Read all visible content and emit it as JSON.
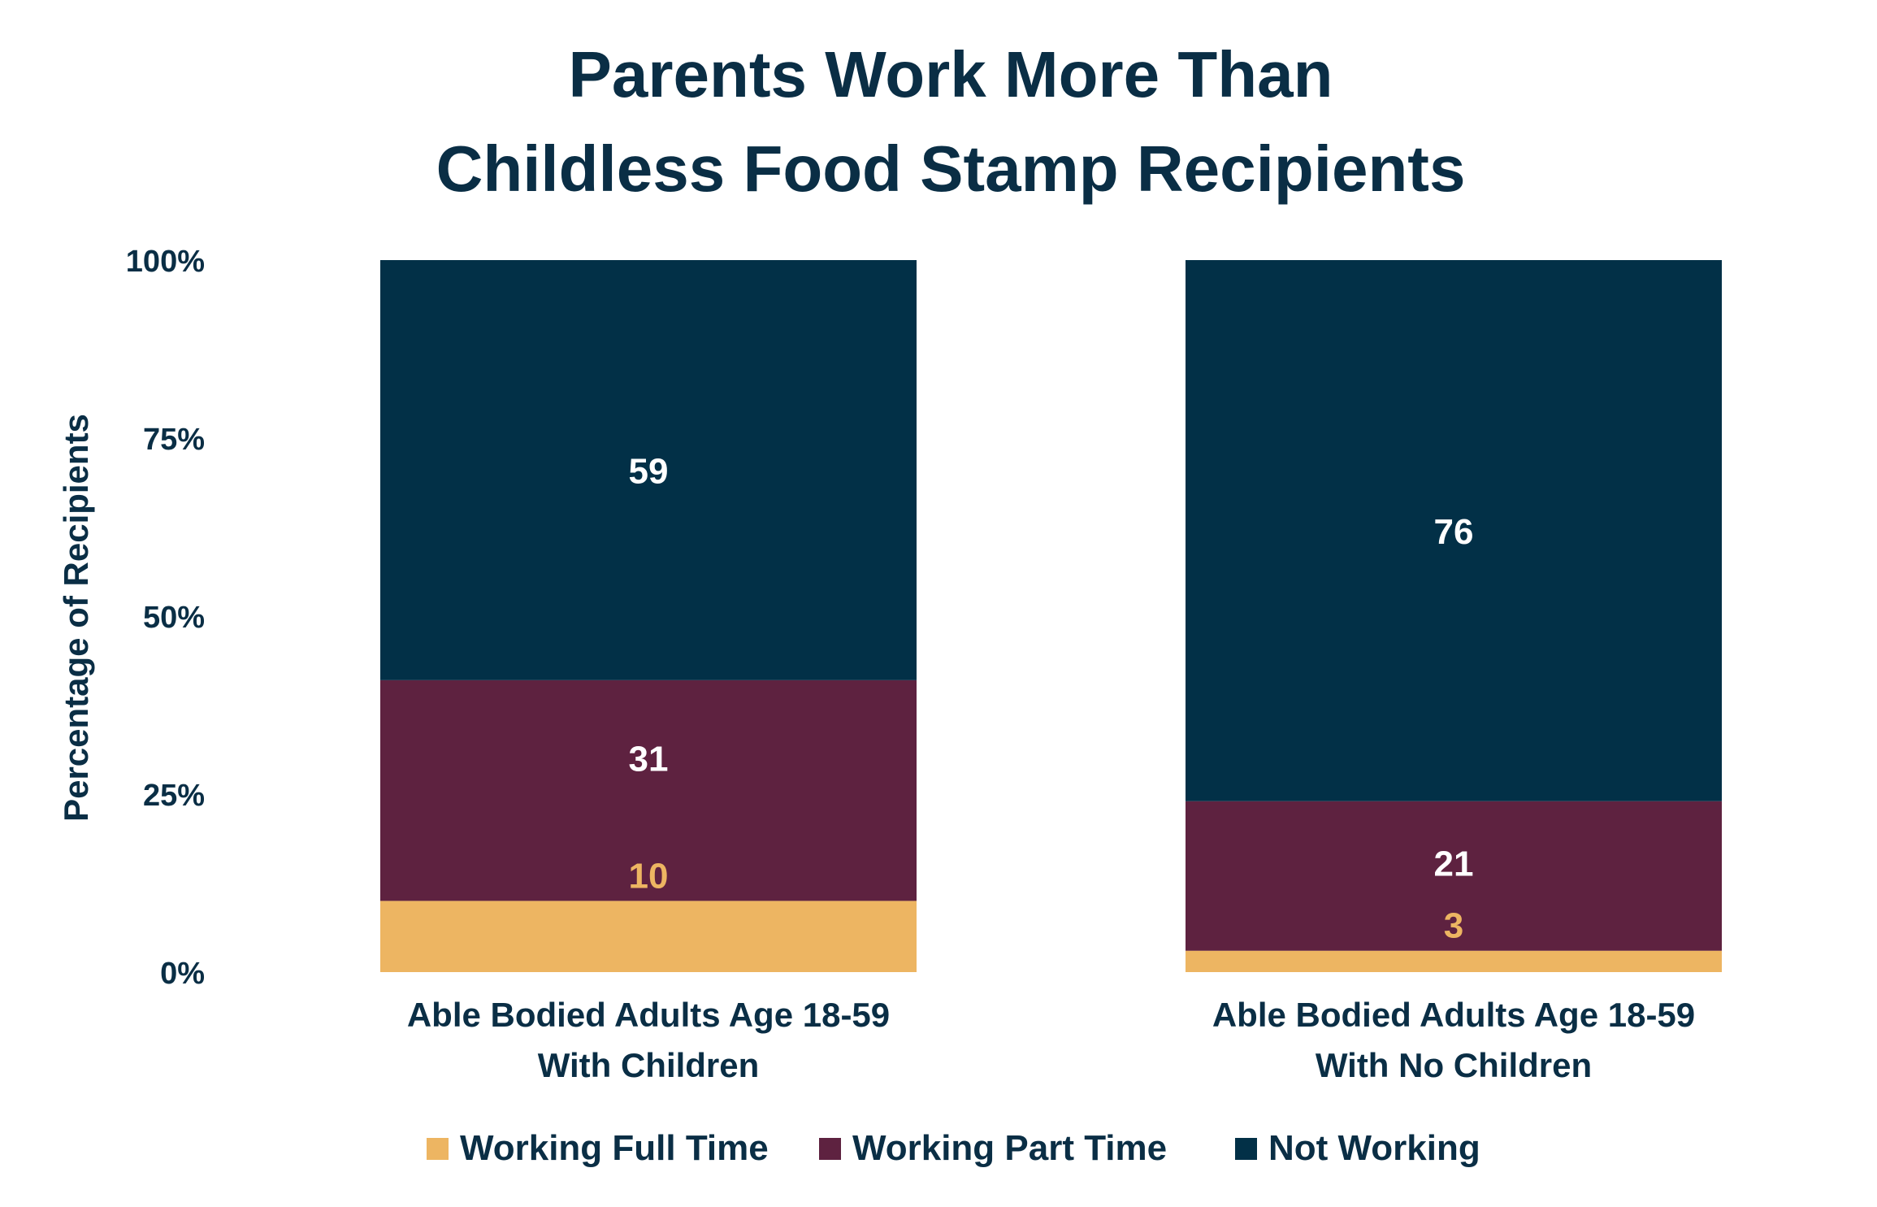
{
  "chart_data": {
    "type": "bar",
    "stacked": true,
    "title": [
      "Parents Work More Than",
      "Childless Food Stamp Recipients"
    ],
    "ylabel": "Percentage of Recipients",
    "xlabel": "",
    "ylim": [
      0,
      100
    ],
    "yticks": [
      "0%",
      "25%",
      "50%",
      "75%",
      "100%"
    ],
    "ytick_values": [
      0,
      25,
      50,
      75,
      100
    ],
    "grid": false,
    "legend_placement": "bottom",
    "categories": [
      [
        "Able Bodied Adults Age 18-59",
        "With Children"
      ],
      [
        "Able Bodied Adults Age 18-59",
        "With No Children"
      ]
    ],
    "series": [
      {
        "name": "Working Full Time",
        "values": [
          10,
          3
        ],
        "color": "#EDB562",
        "label_color": "#EDB562"
      },
      {
        "name": "Working Part Time",
        "values": [
          31,
          21
        ],
        "color": "#5E2240",
        "label_color": "#FFFFFF"
      },
      {
        "name": "Not Working",
        "values": [
          59,
          76
        ],
        "color": "#023047",
        "label_color": "#FFFFFF"
      }
    ]
  }
}
